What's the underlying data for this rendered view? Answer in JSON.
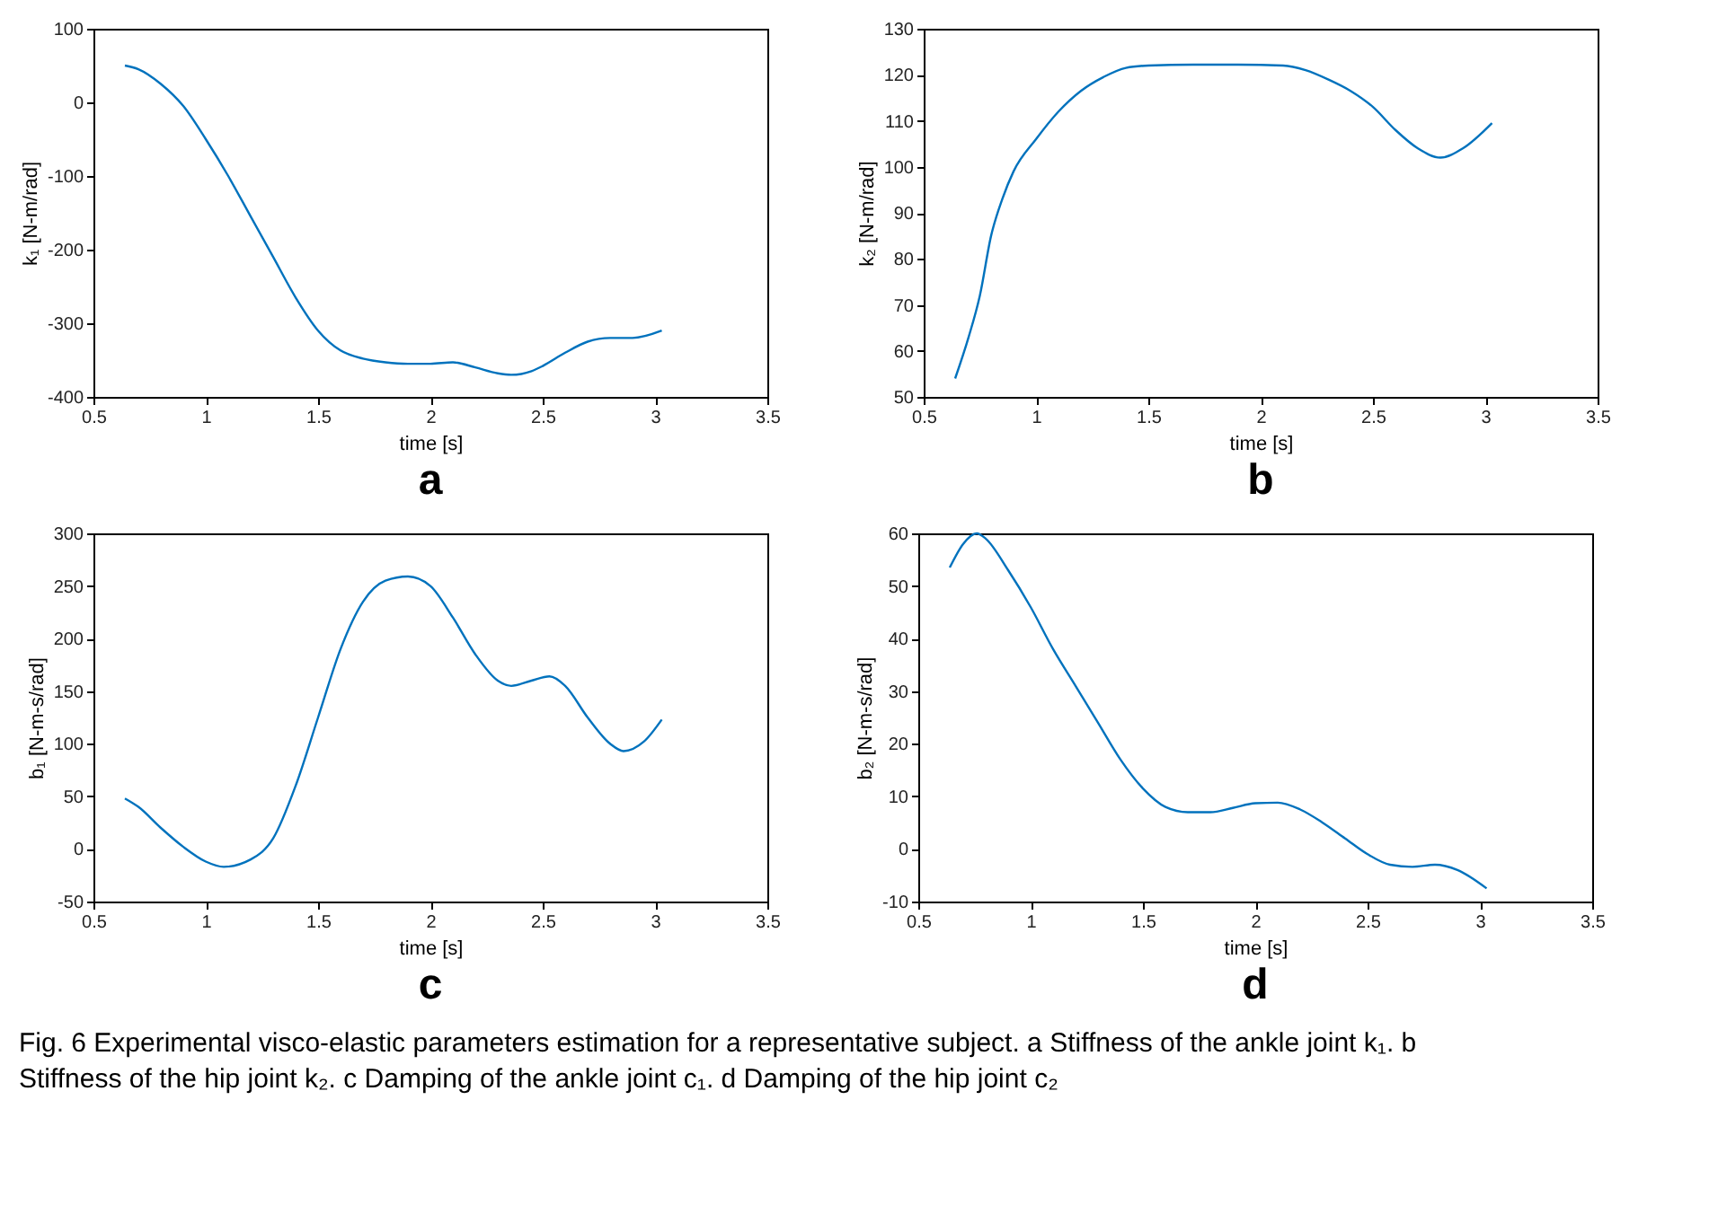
{
  "chart_data": [
    {
      "type": "line",
      "title": "a",
      "xlabel": "time [s]",
      "ylabel": "k₁ [N-m/rad]",
      "xlim": [
        0.5,
        3.5
      ],
      "xticks": [
        0.5,
        1,
        1.5,
        2,
        2.5,
        3,
        3.5
      ],
      "ylim": [
        -400,
        100
      ],
      "yticks": [
        -400,
        -300,
        -200,
        -100,
        0,
        100
      ],
      "grid": false,
      "x": [
        0.64,
        0.7,
        0.8,
        0.9,
        1.0,
        1.1,
        1.2,
        1.3,
        1.4,
        1.5,
        1.6,
        1.7,
        1.8,
        1.9,
        2.0,
        2.1,
        2.2,
        2.3,
        2.36,
        2.45,
        2.5,
        2.6,
        2.7,
        2.8,
        2.9,
        3.03
      ],
      "series": [
        {
          "color": "#0072bd",
          "values": [
            50,
            45,
            25,
            -5,
            -50,
            -100,
            -155,
            -210,
            -265,
            -310,
            -337,
            -348,
            -353,
            -355,
            -355,
            -353,
            -360,
            -368,
            -370,
            -365,
            -358,
            -340,
            -325,
            -320,
            -320,
            -310
          ]
        }
      ]
    },
    {
      "type": "line",
      "title": "b",
      "xlabel": "time [s]",
      "ylabel": "k₂ [N-m/rad]",
      "xlim": [
        0.5,
        3.5
      ],
      "xticks": [
        0.5,
        1,
        1.5,
        2,
        2.5,
        3,
        3.5
      ],
      "ylim": [
        50,
        130
      ],
      "yticks": [
        50,
        60,
        70,
        80,
        90,
        100,
        110,
        120,
        130
      ],
      "grid": false,
      "x": [
        0.64,
        0.7,
        0.75,
        0.8,
        0.85,
        0.9,
        1.0,
        1.1,
        1.2,
        1.3,
        1.4,
        1.5,
        1.7,
        1.9,
        2.1,
        2.2,
        2.3,
        2.4,
        2.5,
        2.6,
        2.7,
        2.8,
        2.9,
        3.03
      ],
      "series": [
        {
          "color": "#0072bd",
          "values": [
            54,
            63,
            72,
            85,
            93,
            99,
            106,
            112,
            116.5,
            119.5,
            121.5,
            122,
            122.2,
            122.2,
            122,
            121,
            119,
            116.5,
            113,
            108,
            104,
            102,
            104,
            109.5
          ]
        }
      ]
    },
    {
      "type": "line",
      "title": "c",
      "xlabel": "time [s]",
      "ylabel": "b₁ [N-m-s/rad]",
      "xlim": [
        0.5,
        3.5
      ],
      "xticks": [
        0.5,
        1,
        1.5,
        2,
        2.5,
        3,
        3.5
      ],
      "ylim": [
        -50,
        300
      ],
      "yticks": [
        -50,
        0,
        50,
        100,
        150,
        200,
        250,
        300
      ],
      "grid": false,
      "x": [
        0.64,
        0.7,
        0.8,
        0.9,
        1.0,
        1.08,
        1.2,
        1.3,
        1.4,
        1.5,
        1.6,
        1.7,
        1.8,
        1.9,
        2.0,
        2.1,
        2.2,
        2.3,
        2.36,
        2.45,
        2.53,
        2.6,
        2.7,
        2.8,
        2.86,
        2.95,
        3.03
      ],
      "series": [
        {
          "color": "#0072bd",
          "values": [
            48,
            40,
            20,
            2,
            -12,
            -17,
            -10,
            10,
            60,
            125,
            190,
            235,
            255,
            259,
            250,
            220,
            185,
            160,
            155,
            160,
            164,
            155,
            125,
            100,
            93,
            102,
            123
          ]
        }
      ]
    },
    {
      "type": "line",
      "title": "d",
      "xlabel": "time [s]",
      "ylabel": "b₂ [N-m-s/rad]",
      "xlim": [
        0.5,
        3.5
      ],
      "xticks": [
        0.5,
        1,
        1.5,
        2,
        2.5,
        3,
        3.5
      ],
      "ylim": [
        -10,
        60
      ],
      "yticks": [
        -10,
        0,
        10,
        20,
        30,
        40,
        50,
        60
      ],
      "grid": false,
      "x": [
        0.64,
        0.7,
        0.76,
        0.8,
        0.9,
        1.0,
        1.1,
        1.2,
        1.3,
        1.4,
        1.5,
        1.6,
        1.7,
        1.8,
        1.9,
        2.0,
        2.1,
        2.2,
        2.3,
        2.4,
        2.5,
        2.6,
        2.7,
        2.8,
        2.9,
        3.03
      ],
      "series": [
        {
          "color": "#0072bd",
          "values": [
            53.5,
            58,
            60,
            59,
            53,
            46,
            38,
            31,
            24,
            17,
            11.5,
            8,
            7,
            7,
            7.8,
            8.7,
            8.8,
            7.5,
            5,
            2,
            -1,
            -3,
            -3.4,
            -3,
            -4,
            -7.5
          ]
        }
      ],
      "annotations": [
        "Fig. 6  Experimental visco-elastic parameters estimation for a representative subject. a Stiffness of the ankle joint k₁. b Stiffness of the hip joint k₂. c Damping of the ankle joint c₁. d Damping of the hip joint c₂"
      ]
    }
  ]
}
